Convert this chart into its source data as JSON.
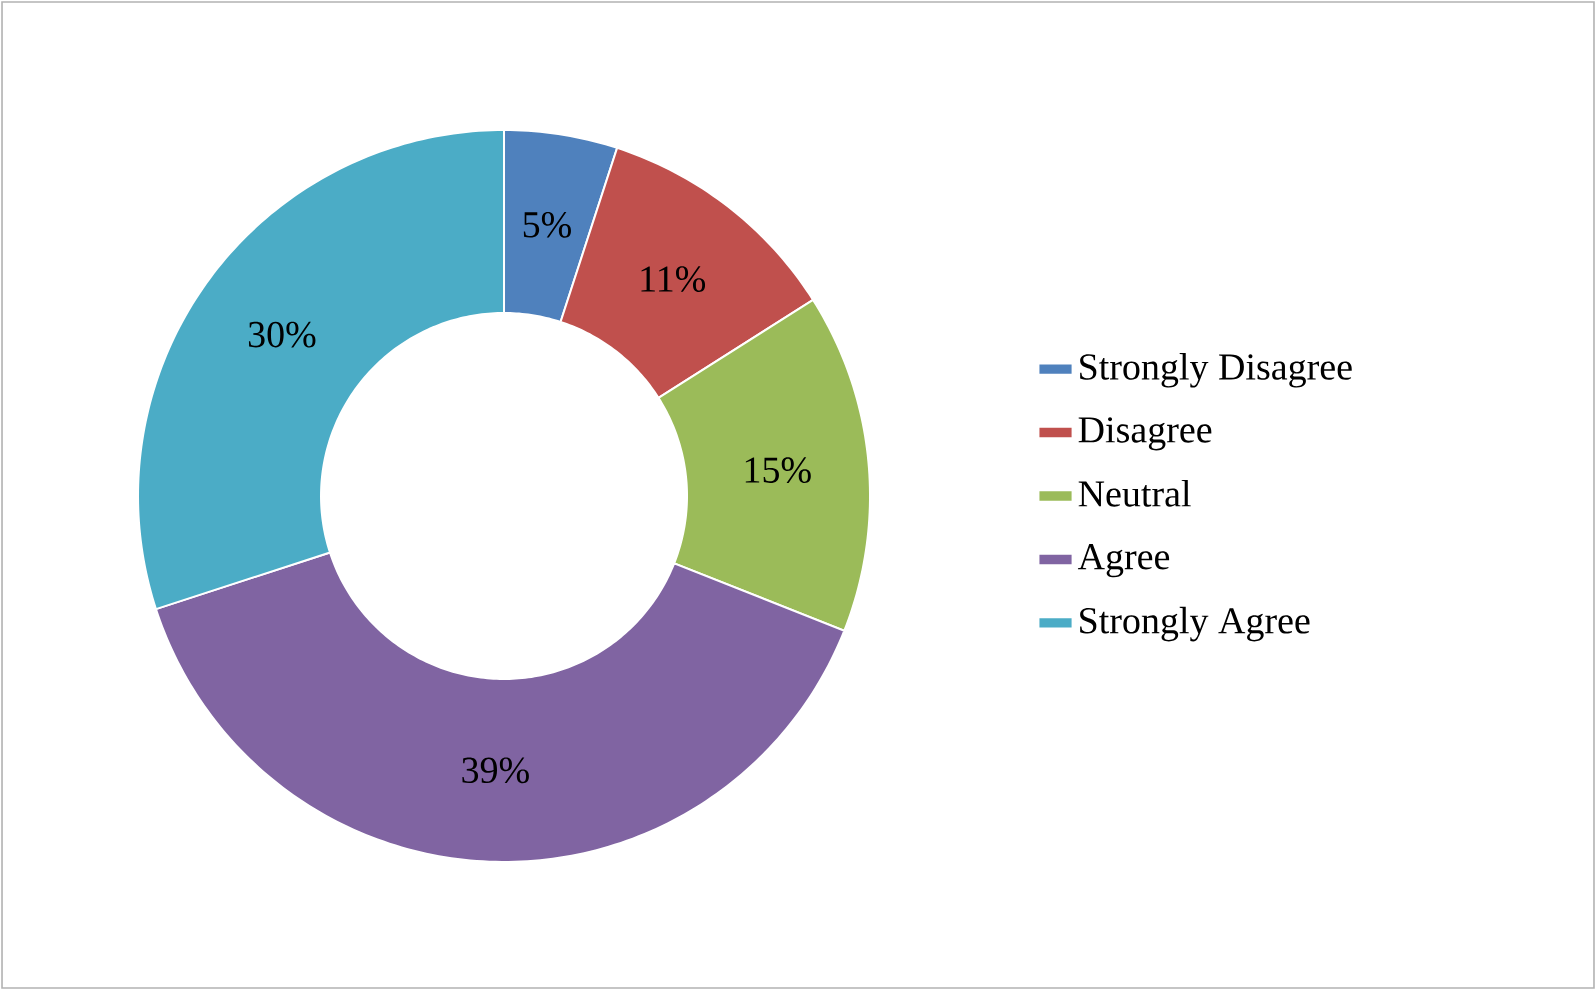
{
  "chart_data": {
    "type": "donut",
    "categories": [
      "Strongly Disagree",
      "Disagree",
      "Neutral",
      "Agree",
      "Strongly Agree"
    ],
    "values": [
      5,
      11,
      15,
      39,
      30
    ],
    "colors": [
      "#4f81bd",
      "#c0504d",
      "#9bbb59",
      "#8064a2",
      "#4bacc6"
    ],
    "value_labels": [
      "5%",
      "11%",
      "15%",
      "39%",
      "30%"
    ],
    "legend": "right"
  }
}
